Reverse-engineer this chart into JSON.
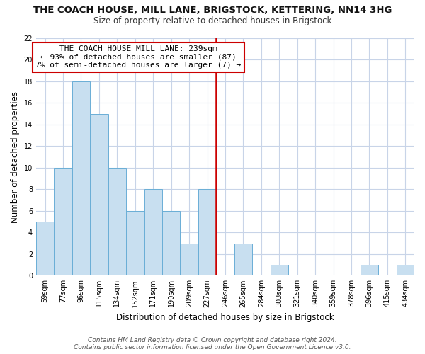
{
  "title": "THE COACH HOUSE, MILL LANE, BRIGSTOCK, KETTERING, NN14 3HG",
  "subtitle": "Size of property relative to detached houses in Brigstock",
  "xlabel": "Distribution of detached houses by size in Brigstock",
  "ylabel": "Number of detached properties",
  "bar_labels": [
    "59sqm",
    "77sqm",
    "96sqm",
    "115sqm",
    "134sqm",
    "152sqm",
    "171sqm",
    "190sqm",
    "209sqm",
    "227sqm",
    "246sqm",
    "265sqm",
    "284sqm",
    "303sqm",
    "321sqm",
    "340sqm",
    "359sqm",
    "378sqm",
    "396sqm",
    "415sqm",
    "434sqm"
  ],
  "bar_values": [
    5,
    10,
    18,
    15,
    10,
    6,
    8,
    6,
    3,
    8,
    0,
    3,
    0,
    1,
    0,
    0,
    0,
    0,
    1,
    0,
    1
  ],
  "bar_color": "#c8dff0",
  "bar_edgecolor": "#6aaed6",
  "vline_position": 9.5,
  "vline_color": "#cc0000",
  "ylim": [
    0,
    22
  ],
  "yticks": [
    0,
    2,
    4,
    6,
    8,
    10,
    12,
    14,
    16,
    18,
    20,
    22
  ],
  "annotation_title": "THE COACH HOUSE MILL LANE: 239sqm",
  "annotation_line1": "← 93% of detached houses are smaller (87)",
  "annotation_line2": "7% of semi-detached houses are larger (7) →",
  "annotation_box_color": "#ffffff",
  "annotation_box_edgecolor": "#cc0000",
  "footer_line1": "Contains HM Land Registry data © Crown copyright and database right 2024.",
  "footer_line2": "Contains public sector information licensed under the Open Government Licence v3.0.",
  "background_color": "#ffffff",
  "grid_color": "#c8d4e8",
  "title_fontsize": 9.5,
  "subtitle_fontsize": 8.5,
  "ylabel_fontsize": 8.5,
  "xlabel_fontsize": 8.5,
  "tick_fontsize": 7,
  "annotation_fontsize": 8,
  "footer_fontsize": 6.5
}
